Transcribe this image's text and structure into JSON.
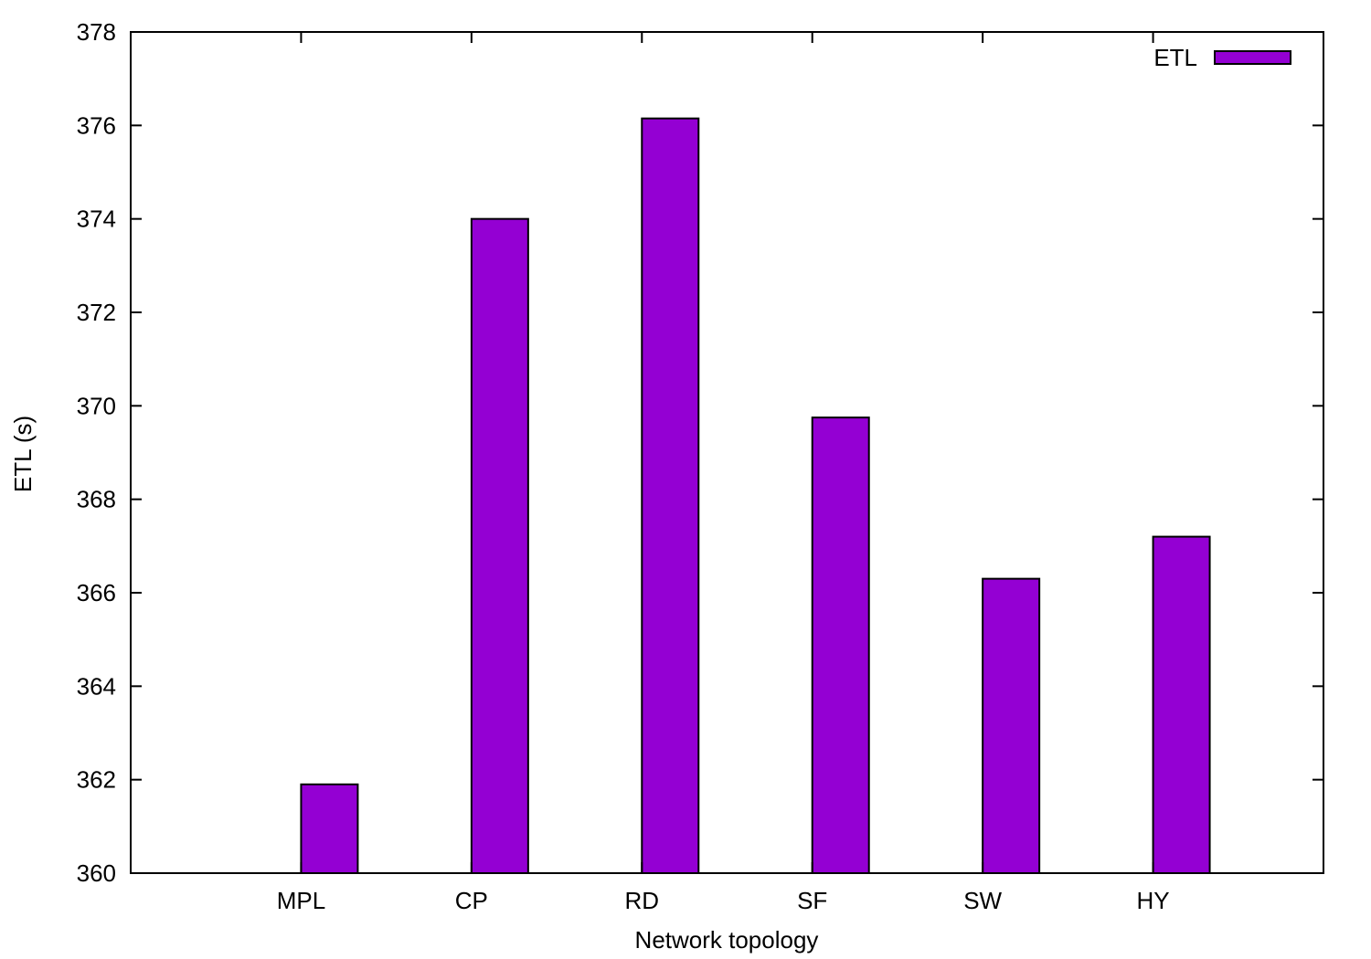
{
  "chart_data": {
    "type": "bar",
    "title": "",
    "xlabel": "Network topology",
    "ylabel": "ETL (s)",
    "categories": [
      "MPL",
      "CP",
      "RD",
      "SF",
      "SW",
      "HY"
    ],
    "series": [
      {
        "name": "ETL",
        "values": [
          361.9,
          374.0,
          376.15,
          369.75,
          366.3,
          367.2
        ]
      }
    ],
    "ylim": [
      360,
      378
    ],
    "yticks": [
      360,
      362,
      364,
      366,
      368,
      370,
      372,
      374,
      376,
      378
    ],
    "grid": false,
    "legend_position": "top-right",
    "colors": {
      "bar_fill": "#9400d3",
      "bar_stroke": "#000000"
    }
  }
}
